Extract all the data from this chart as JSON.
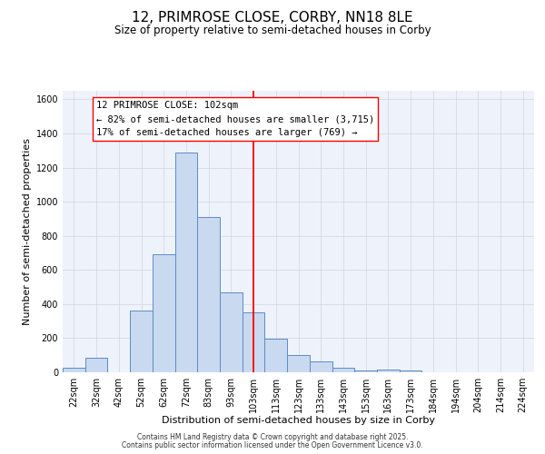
{
  "title": "12, PRIMROSE CLOSE, CORBY, NN18 8LE",
  "subtitle": "Size of property relative to semi-detached houses in Corby",
  "xlabel": "Distribution of semi-detached houses by size in Corby",
  "ylabel": "Number of semi-detached properties",
  "bar_labels": [
    "22sqm",
    "32sqm",
    "42sqm",
    "52sqm",
    "62sqm",
    "72sqm",
    "83sqm",
    "93sqm",
    "103sqm",
    "113sqm",
    "123sqm",
    "133sqm",
    "143sqm",
    "153sqm",
    "163sqm",
    "173sqm",
    "184sqm",
    "194sqm",
    "204sqm",
    "214sqm",
    "224sqm"
  ],
  "bar_values": [
    25,
    85,
    0,
    360,
    690,
    1290,
    910,
    470,
    350,
    195,
    100,
    65,
    25,
    10,
    15,
    8,
    0,
    0,
    0,
    0,
    0
  ],
  "bar_color": "#c9d9f0",
  "bar_edge_color": "#5b8cc8",
  "vline_idx": 8,
  "vline_color": "red",
  "annotation_title": "12 PRIMROSE CLOSE: 102sqm",
  "annotation_line1": "← 82% of semi-detached houses are smaller (3,715)",
  "annotation_line2": "17% of semi-detached houses are larger (769) →",
  "annotation_box_color": "white",
  "annotation_box_edge": "red",
  "ylim": [
    0,
    1650
  ],
  "yticks": [
    0,
    200,
    400,
    600,
    800,
    1000,
    1200,
    1400,
    1600
  ],
  "footer1": "Contains HM Land Registry data © Crown copyright and database right 2025.",
  "footer2": "Contains public sector information licensed under the Open Government Licence v3.0.",
  "bg_color": "#eef2fb",
  "grid_color": "#d0d4dd",
  "title_fontsize": 11,
  "subtitle_fontsize": 8.5,
  "axis_label_fontsize": 8,
  "tick_fontsize": 7,
  "annotation_fontsize": 7.5,
  "footer_fontsize": 5.5
}
